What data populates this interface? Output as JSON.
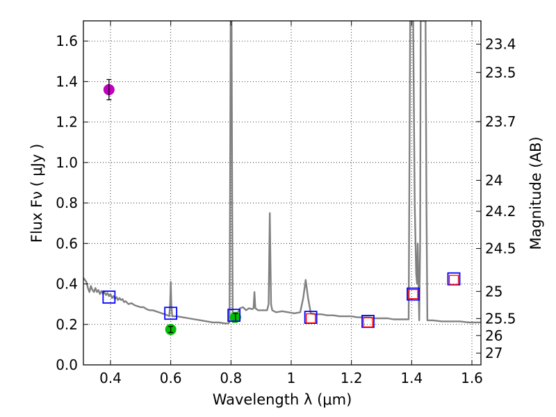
{
  "chart_data": {
    "type": "scatter",
    "xlabel": "Wavelength  λ (μm)",
    "ylabel": "Flux  Fν  ( μJy )",
    "ylabel_right": "Magnitude (AB)",
    "xlim": [
      0.31,
      1.63
    ],
    "ylim": [
      0.0,
      1.7
    ],
    "grid": true,
    "x_ticks": [
      0.4,
      0.6,
      0.8,
      1.0,
      1.2,
      1.4,
      1.6
    ],
    "x_tick_labels": [
      "0.4",
      "0.6",
      "0.8",
      "1",
      "1.2",
      "1.4",
      "1.6"
    ],
    "y_ticks": [
      0.0,
      0.2,
      0.4,
      0.6,
      0.8,
      1.0,
      1.2,
      1.4,
      1.6
    ],
    "y_tick_labels": [
      "0.0",
      "0.2",
      "0.4",
      "0.6",
      "0.8",
      "1.0",
      "1.2",
      "1.4",
      "1.6"
    ],
    "right_axis_ticks": [
      {
        "mag": "23.4",
        "flux": 1.585
      },
      {
        "mag": "23.5",
        "flux": 1.445
      },
      {
        "mag": "23.7",
        "flux": 1.202
      },
      {
        "mag": "24",
        "flux": 0.912
      },
      {
        "mag": "24.2",
        "flux": 0.759
      },
      {
        "mag": "24.5",
        "flux": 0.575
      },
      {
        "mag": "25",
        "flux": 0.363
      },
      {
        "mag": "25.5",
        "flux": 0.229
      },
      {
        "mag": "26",
        "flux": 0.145
      },
      {
        "mag": "27",
        "flux": 0.058
      }
    ],
    "series": [
      {
        "name": "model spectrum",
        "kind": "line",
        "color": "#808080",
        "points": [
          [
            0.31,
            0.43
          ],
          [
            0.315,
            0.42
          ],
          [
            0.32,
            0.41
          ],
          [
            0.325,
            0.38
          ],
          [
            0.33,
            0.36
          ],
          [
            0.335,
            0.39
          ],
          [
            0.34,
            0.37
          ],
          [
            0.345,
            0.36
          ],
          [
            0.35,
            0.38
          ],
          [
            0.355,
            0.36
          ],
          [
            0.36,
            0.37
          ],
          [
            0.365,
            0.35
          ],
          [
            0.37,
            0.365
          ],
          [
            0.375,
            0.35
          ],
          [
            0.38,
            0.36
          ],
          [
            0.385,
            0.345
          ],
          [
            0.39,
            0.355
          ],
          [
            0.395,
            0.34
          ],
          [
            0.4,
            0.35
          ],
          [
            0.405,
            0.33
          ],
          [
            0.41,
            0.34
          ],
          [
            0.415,
            0.325
          ],
          [
            0.42,
            0.335
          ],
          [
            0.425,
            0.32
          ],
          [
            0.43,
            0.33
          ],
          [
            0.435,
            0.32
          ],
          [
            0.44,
            0.325
          ],
          [
            0.445,
            0.31
          ],
          [
            0.45,
            0.315
          ],
          [
            0.46,
            0.3
          ],
          [
            0.47,
            0.305
          ],
          [
            0.48,
            0.295
          ],
          [
            0.49,
            0.29
          ],
          [
            0.5,
            0.285
          ],
          [
            0.51,
            0.285
          ],
          [
            0.52,
            0.275
          ],
          [
            0.53,
            0.27
          ],
          [
            0.54,
            0.27
          ],
          [
            0.55,
            0.265
          ],
          [
            0.56,
            0.26
          ],
          [
            0.57,
            0.255
          ],
          [
            0.58,
            0.25
          ],
          [
            0.59,
            0.245
          ],
          [
            0.595,
            0.24
          ],
          [
            0.598,
            0.3
          ],
          [
            0.6,
            0.41
          ],
          [
            0.602,
            0.3
          ],
          [
            0.605,
            0.24
          ],
          [
            0.62,
            0.24
          ],
          [
            0.64,
            0.235
          ],
          [
            0.66,
            0.23
          ],
          [
            0.68,
            0.225
          ],
          [
            0.7,
            0.22
          ],
          [
            0.72,
            0.215
          ],
          [
            0.74,
            0.21
          ],
          [
            0.76,
            0.21
          ],
          [
            0.78,
            0.205
          ],
          [
            0.79,
            0.205
          ],
          [
            0.795,
            0.21
          ],
          [
            0.797,
            0.8
          ],
          [
            0.799,
            1.7
          ],
          [
            0.802,
            1.7
          ],
          [
            0.804,
            0.8
          ],
          [
            0.806,
            0.21
          ],
          [
            0.81,
            0.22
          ],
          [
            0.82,
            0.25
          ],
          [
            0.83,
            0.28
          ],
          [
            0.84,
            0.285
          ],
          [
            0.85,
            0.27
          ],
          [
            0.86,
            0.28
          ],
          [
            0.87,
            0.275
          ],
          [
            0.875,
            0.28
          ],
          [
            0.878,
            0.36
          ],
          [
            0.881,
            0.28
          ],
          [
            0.89,
            0.27
          ],
          [
            0.9,
            0.27
          ],
          [
            0.91,
            0.27
          ],
          [
            0.92,
            0.27
          ],
          [
            0.925,
            0.3
          ],
          [
            0.929,
            0.75
          ],
          [
            0.933,
            0.3
          ],
          [
            0.937,
            0.27
          ],
          [
            0.95,
            0.26
          ],
          [
            0.97,
            0.265
          ],
          [
            0.99,
            0.26
          ],
          [
            1.01,
            0.255
          ],
          [
            1.03,
            0.26
          ],
          [
            1.04,
            0.33
          ],
          [
            1.048,
            0.42
          ],
          [
            1.056,
            0.33
          ],
          [
            1.065,
            0.255
          ],
          [
            1.08,
            0.25
          ],
          [
            1.1,
            0.25
          ],
          [
            1.12,
            0.245
          ],
          [
            1.14,
            0.245
          ],
          [
            1.16,
            0.24
          ],
          [
            1.18,
            0.24
          ],
          [
            1.2,
            0.24
          ],
          [
            1.22,
            0.235
          ],
          [
            1.24,
            0.235
          ],
          [
            1.26,
            0.235
          ],
          [
            1.28,
            0.23
          ],
          [
            1.3,
            0.23
          ],
          [
            1.32,
            0.23
          ],
          [
            1.34,
            0.225
          ],
          [
            1.36,
            0.225
          ],
          [
            1.38,
            0.225
          ],
          [
            1.39,
            0.225
          ],
          [
            1.395,
            1.7
          ],
          [
            1.405,
            1.7
          ],
          [
            1.41,
            0.8
          ],
          [
            1.415,
            0.45
          ],
          [
            1.418,
            0.4
          ],
          [
            1.42,
            0.6
          ],
          [
            1.425,
            0.22
          ],
          [
            1.428,
            0.6
          ],
          [
            1.43,
            1.7
          ],
          [
            1.446,
            1.7
          ],
          [
            1.449,
            0.8
          ],
          [
            1.452,
            0.22
          ],
          [
            1.47,
            0.22
          ],
          [
            1.5,
            0.215
          ],
          [
            1.53,
            0.215
          ],
          [
            1.56,
            0.215
          ],
          [
            1.59,
            0.21
          ],
          [
            1.63,
            0.21
          ]
        ]
      },
      {
        "name": "observed photometry (magenta)",
        "kind": "points",
        "color": "#bf00bf",
        "points": [
          {
            "x": 0.395,
            "y": 1.36,
            "err": 0.05
          }
        ]
      },
      {
        "name": "observed photometry (green)",
        "kind": "points",
        "color": "#00bf00",
        "points": [
          {
            "x": 0.6,
            "y": 0.175,
            "err": 0.015
          },
          {
            "x": 0.815,
            "y": 0.235,
            "err": 0.02
          }
        ]
      },
      {
        "name": "model photometry (blue squares)",
        "kind": "squares",
        "color": "#0000ff",
        "points": [
          {
            "x": 0.395,
            "y": 0.335
          },
          {
            "x": 0.6,
            "y": 0.255
          },
          {
            "x": 0.81,
            "y": 0.245
          },
          {
            "x": 1.065,
            "y": 0.235
          },
          {
            "x": 1.255,
            "y": 0.215
          },
          {
            "x": 1.405,
            "y": 0.35
          },
          {
            "x": 1.54,
            "y": 0.425
          }
        ]
      },
      {
        "name": "model photometry (red squares)",
        "kind": "squares",
        "color": "#ff0000",
        "points": [
          {
            "x": 1.065,
            "y": 0.23
          },
          {
            "x": 1.255,
            "y": 0.21
          },
          {
            "x": 1.405,
            "y": 0.35
          },
          {
            "x": 1.54,
            "y": 0.42
          }
        ]
      }
    ]
  }
}
